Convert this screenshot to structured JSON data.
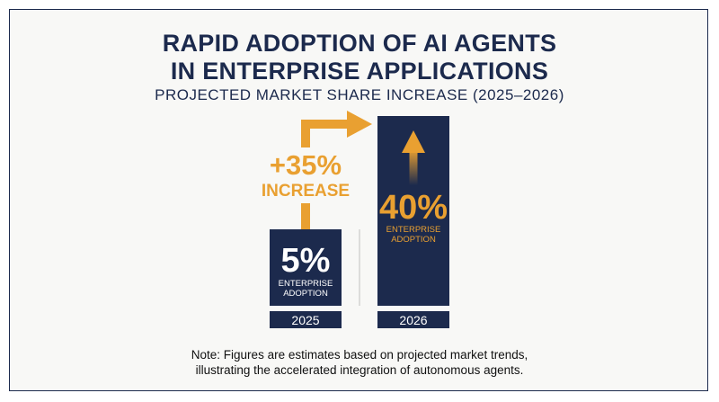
{
  "title_line1": "RAPID ADOPTION OF AI AGENTS",
  "title_line2": "IN ENTERPRISE APPLICATIONS",
  "subtitle": "PROJECTED MARKET SHARE INCREASE (2025–2026)",
  "note_line1": "Note: Figures are estimates based on projected market trends,",
  "note_line2": "illustrating the accelerated integration of autonomous agents.",
  "colors": {
    "navy": "#1c2a4d",
    "orange": "#e9a031",
    "background": "#f8f8f6"
  },
  "chart_data": {
    "type": "bar",
    "categories": [
      "2025",
      "2026"
    ],
    "values": [
      5,
      40
    ],
    "value_labels": [
      "5%",
      "40%"
    ],
    "bar_sublabels": [
      "ENTERPRISE\nADOPTION",
      "ENTERPRISE\nADOPTION"
    ],
    "annotation_value": "+35%",
    "annotation_text": "INCREASE",
    "grid": false,
    "legend": "none"
  }
}
